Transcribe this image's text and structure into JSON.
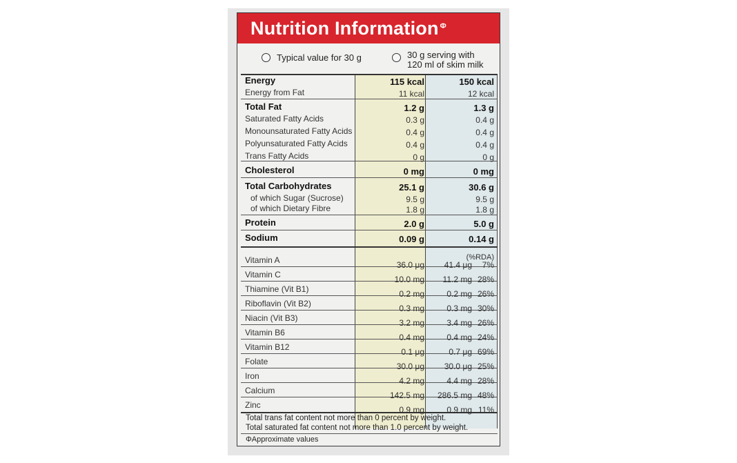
{
  "title": "Nutrition Information",
  "title_mark": "Φ",
  "options": [
    {
      "label": "Typical value for 30 g"
    },
    {
      "label_line1": "30 g serving with",
      "label_line2": "120 ml of skim milk"
    }
  ],
  "rda_header": "(%RDA)",
  "macros": [
    {
      "label": "Energy",
      "a": "115 kcal",
      "b": "150 kcal",
      "bold": true
    },
    {
      "label": "Energy from Fat",
      "a": "11 kcal",
      "b": "12 kcal"
    },
    {
      "label": "Total Fat",
      "a": "1.2 g",
      "b": "1.3 g",
      "bold": true
    },
    {
      "label": "Saturated Fatty Acids",
      "a": "0.3 g",
      "b": "0.4 g"
    },
    {
      "label": "Monounsaturated Fatty Acids",
      "a": "0.4 g",
      "b": "0.4 g"
    },
    {
      "label": "Polyunsaturated Fatty Acids",
      "a": "0.4 g",
      "b": "0.4 g"
    },
    {
      "label": "Trans Fatty Acids",
      "a": "0 g",
      "b": "0 g"
    },
    {
      "label": "Cholesterol",
      "a": "0 mg",
      "b": "0 mg",
      "bold": true
    },
    {
      "label": "Total Carbohydrates",
      "a": "25.1 g",
      "b": "30.6 g",
      "bold": true
    },
    {
      "label": "of which Sugar (Sucrose)",
      "a": "9.5 g",
      "b": "9.5 g"
    },
    {
      "label": "of which Dietary Fibre",
      "a": "1.8 g",
      "b": "1.8 g"
    },
    {
      "label": "Protein",
      "a": "2.0 g",
      "b": "5.0 g",
      "bold": true
    },
    {
      "label": "Sodium",
      "a": "0.09 g",
      "b": "0.14 g",
      "bold": true
    }
  ],
  "vitamins": [
    {
      "label": "Vitamin A",
      "a": "36.0 μg",
      "b": "41.4 μg",
      "pct": "7%"
    },
    {
      "label": "Vitamin C",
      "a": "10.0 mg",
      "b": "11.2 mg",
      "pct": "28%"
    },
    {
      "label": "Thiamine (Vit B1)",
      "a": "0.2 mg",
      "b": "0.2 mg",
      "pct": "26%"
    },
    {
      "label": "Riboflavin (Vit B2)",
      "a": "0.3 mg",
      "b": "0.3 mg",
      "pct": "30%"
    },
    {
      "label": "Niacin (Vit B3)",
      "a": "3.2 mg",
      "b": "3.4 mg",
      "pct": "26%"
    },
    {
      "label": "Vitamin B6",
      "a": "0.4 mg",
      "b": "0.4 mg",
      "pct": "24%"
    },
    {
      "label": "Vitamin B12",
      "a": "0.1 μg",
      "b": "0.7 μg",
      "pct": "69%"
    },
    {
      "label": "Folate",
      "a": "30.0 μg",
      "b": "30.0 μg",
      "pct": "25%"
    },
    {
      "label": "Iron",
      "a": "4.2 mg",
      "b": "4.4 mg",
      "pct": "28%"
    },
    {
      "label": "Calcium",
      "a": "142.5 mg",
      "b": "286.5 mg",
      "pct": "48%"
    },
    {
      "label": "Zinc",
      "a": "0.9 mg",
      "b": "0.9 mg",
      "pct": "11%"
    }
  ],
  "footnotes": [
    "Total trans fat content not more than 0 percent by weight.",
    "Total saturated fat content not more than 1.0 percent by weight.",
    "ΦApproximate values"
  ],
  "colors": {
    "header": "#d8242c",
    "col_a": "#efedcf",
    "col_b": "#dfe8ea"
  }
}
